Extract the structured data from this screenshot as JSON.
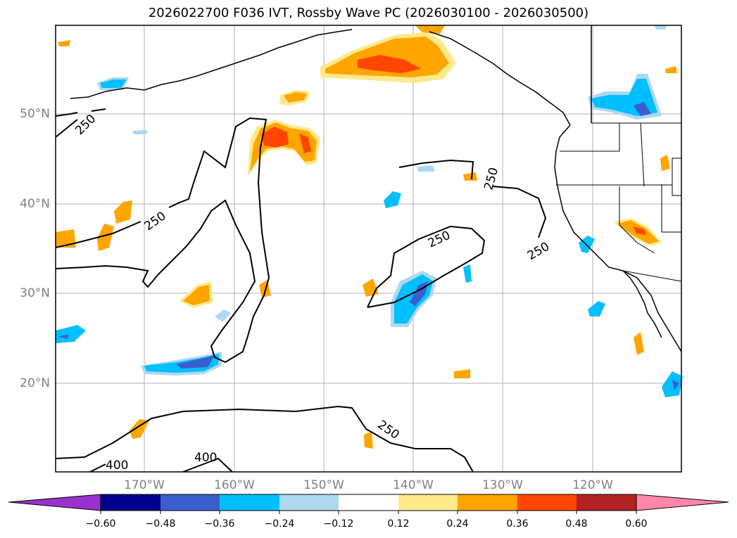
{
  "title": "2026022700 F036 IVT, Rossby Wave PC (2026030100 - 2026030500)",
  "lat_labels": [
    "50°N",
    "40°N",
    "30°N",
    "20°N"
  ],
  "lon_labels": [
    "170°W",
    "160°W",
    "150°W",
    "140°W",
    "130°W",
    "120°W"
  ],
  "contour_labels": [
    "250",
    "250",
    "250",
    "250",
    "250",
    "250",
    "400",
    "400"
  ],
  "colorbar": {
    "ticks": [
      "−0.60",
      "−0.48",
      "−0.36",
      "−0.24",
      "−0.12",
      "0.12",
      "0.24",
      "0.36",
      "0.48",
      "0.60"
    ],
    "colors": [
      "#9932cc",
      "#00008b",
      "#3a5fcd",
      "#00bfff",
      "#add8f0",
      "#ffffff",
      "#ffe98a",
      "#ffa500",
      "#ff4500",
      "#b22222",
      "#ff88aa"
    ]
  },
  "colors": {
    "grid": "#b0b0b0",
    "coast": "#000000",
    "orange": "#ffa500",
    "light_yellow": "#ffe98a",
    "red_orange": "#ff4500",
    "blue": "#00bfff",
    "light_blue": "#add8f0",
    "royal_blue": "#3a5fcd"
  }
}
